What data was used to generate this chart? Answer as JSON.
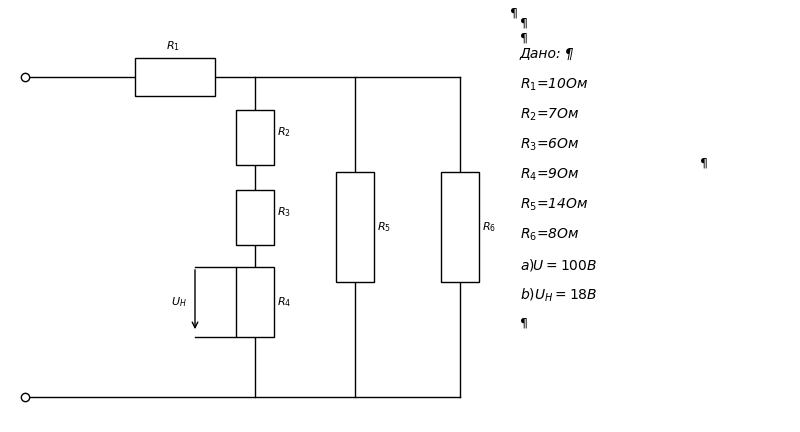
{
  "bg_color": "#ffffff",
  "line_color": "#000000",
  "fig_width": 8.0,
  "fig_height": 4.32,
  "dpi": 100,
  "paragraph_mark": "¶",
  "dado_text": "Дано:",
  "r_labels": [
    "$R_1$",
    "$R_2$",
    "$R_3$",
    "$R_4$",
    "$R_5$",
    "$R_6$"
  ],
  "r_values": [
    "=10Ом",
    "=7Ом",
    "=6Ом",
    "=9Ом",
    "=14Ом",
    "=8Ом"
  ],
  "cond_a": "$a)U =100В$",
  "cond_b": "$b)U_{H} =18В$"
}
